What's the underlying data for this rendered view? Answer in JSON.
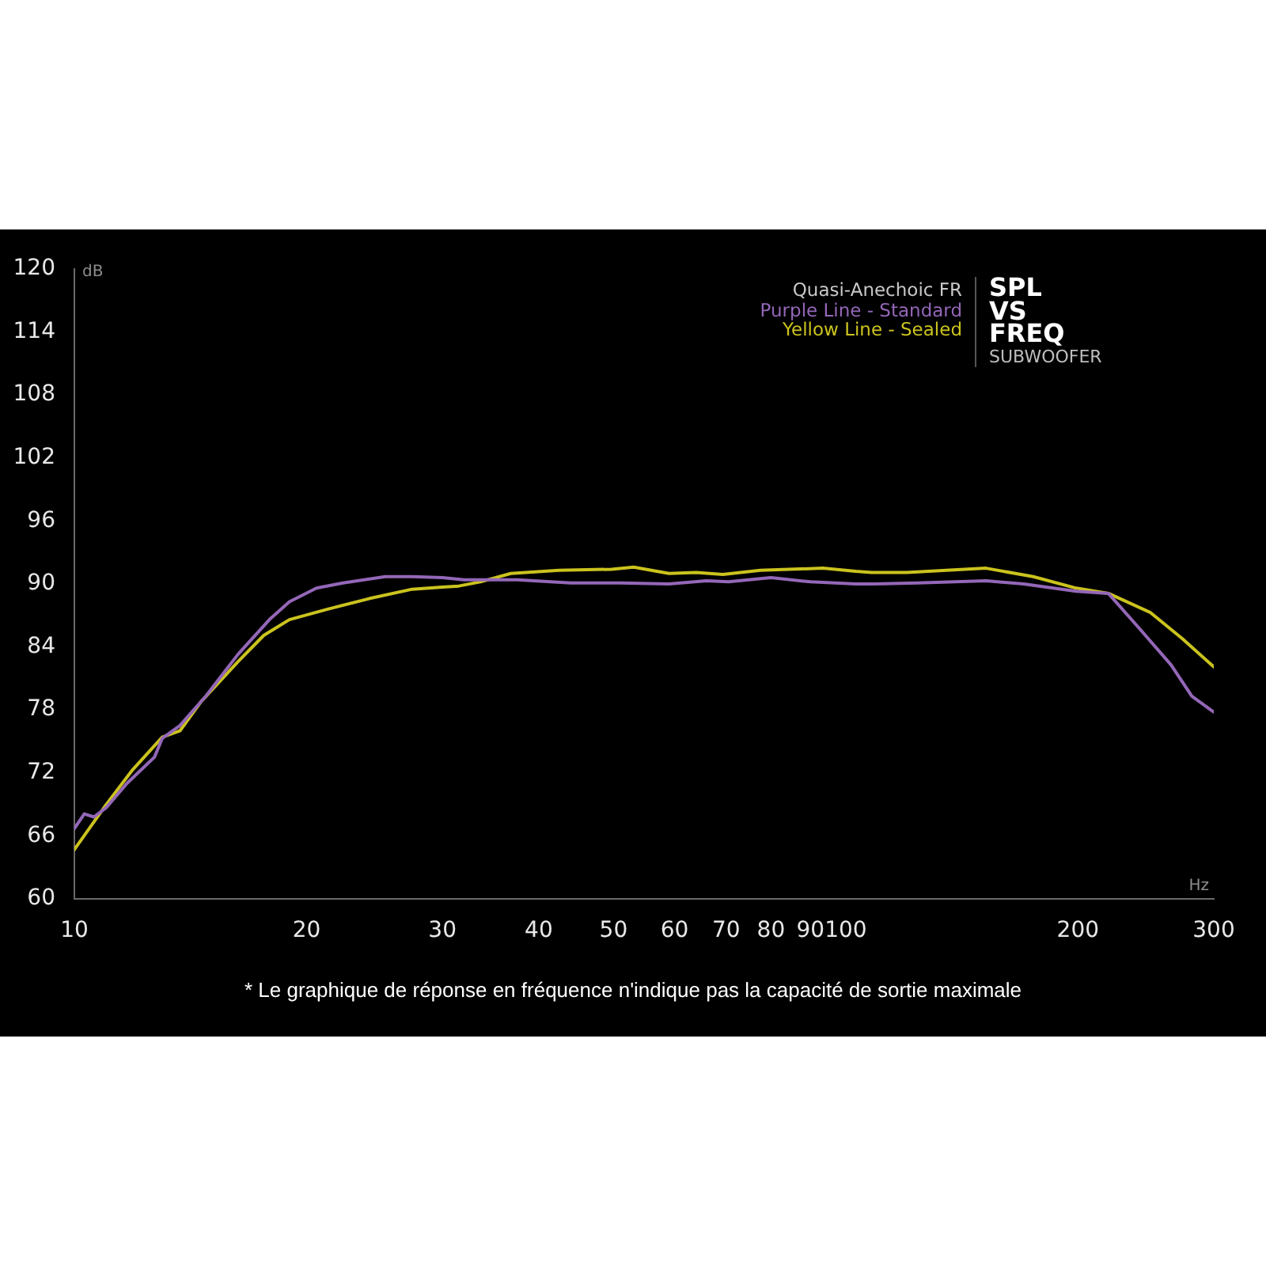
{
  "chart_data": {
    "type": "line",
    "title": "SPL VS FREQ",
    "subtitle": "SUBWOOFER",
    "legend_title": "Quasi-Anechoic FR",
    "xlabel": "Hz",
    "ylabel": "dB",
    "annotations": [
      "* Le graphique de réponse en fréquence n'indique pas la capacité de sortie maximale"
    ],
    "log": "x",
    "xlim": [
      10,
      300
    ],
    "xticks": [
      10,
      20,
      30,
      40,
      50,
      60,
      70,
      80,
      90,
      100,
      200,
      300
    ],
    "ylim": [
      60,
      120
    ],
    "yticks": [
      60,
      66,
      72,
      78,
      84,
      90,
      96,
      102,
      108,
      114,
      120
    ],
    "legend": "top right",
    "marker": "none",
    "series": [
      {
        "name": "Purple Line - Standard",
        "color": "#9467b8",
        "x": [
          10,
          10.3,
          10.6,
          11,
          11.7,
          12.7,
          13,
          13.7,
          14.8,
          16.3,
          17.9,
          19,
          20.6,
          22.3,
          25.3,
          27.4,
          30,
          32,
          37.5,
          44,
          51,
          59,
          66,
          70.5,
          80,
          90,
          103,
          109,
          124,
          152,
          170,
          199,
          219,
          240,
          264,
          281,
          300
        ],
        "values": [
          66.7,
          68.1,
          67.8,
          68.7,
          71.0,
          73.5,
          75.3,
          76.5,
          79.3,
          83.3,
          86.6,
          88.3,
          89.6,
          90.1,
          90.7,
          90.7,
          90.6,
          90.4,
          90.4,
          90.1,
          90.1,
          90.0,
          90.3,
          90.2,
          90.6,
          90.2,
          90.0,
          90.0,
          90.1,
          90.3,
          90.0,
          89.3,
          89.1,
          85.8,
          82.3,
          79.3,
          77.8
        ]
      },
      {
        "name": "Yellow Line - Sealed",
        "color": "#cbc31e",
        "x": [
          10,
          11,
          11.9,
          13,
          13.7,
          14.6,
          16.3,
          17.6,
          19,
          21.3,
          24.1,
          27.4,
          30,
          31.5,
          33.6,
          36.8,
          42.5,
          49.7,
          53.1,
          59,
          64,
          69.3,
          77.5,
          93.4,
          103,
          108,
          120,
          152,
          175,
          199,
          219,
          248,
          273,
          300
        ],
        "values": [
          64.7,
          69.0,
          72.3,
          75.4,
          76.0,
          78.8,
          82.6,
          85.1,
          86.6,
          87.6,
          88.6,
          89.5,
          89.7,
          89.8,
          90.2,
          91.0,
          91.3,
          91.4,
          91.6,
          91.0,
          91.1,
          90.9,
          91.3,
          91.5,
          91.2,
          91.1,
          91.1,
          91.5,
          90.7,
          89.6,
          89.1,
          87.3,
          84.8,
          82.1
        ]
      }
    ]
  }
}
